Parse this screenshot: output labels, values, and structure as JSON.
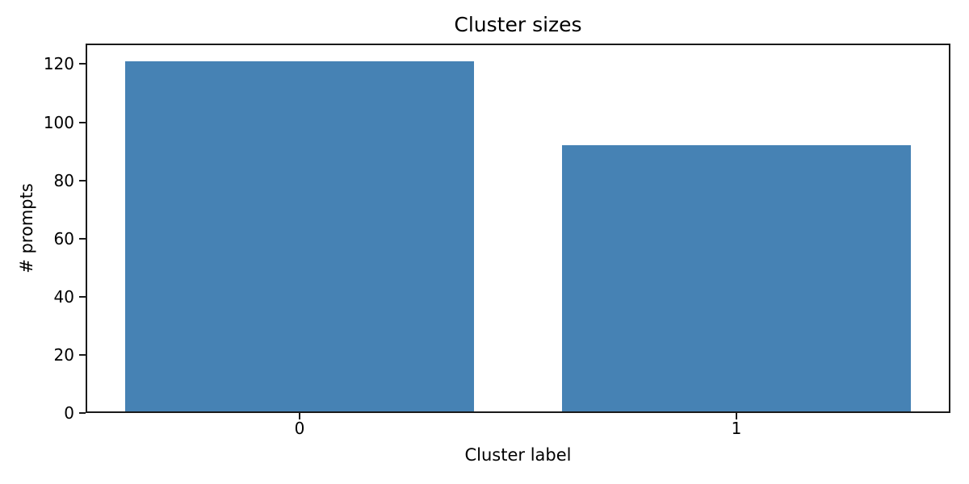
{
  "chart_data": {
    "type": "bar",
    "title": "Cluster sizes",
    "xlabel": "Cluster label",
    "ylabel": "# prompts",
    "categories": [
      "0",
      "1"
    ],
    "values": [
      121,
      92
    ],
    "yticks": [
      0,
      20,
      40,
      60,
      80,
      100,
      120
    ],
    "ylim": [
      0,
      127.05
    ],
    "xlim": [
      -0.49,
      1.49
    ],
    "bar_width_units": 0.8,
    "bar_color": "#4682b4",
    "axis_color": "#1a1a1a",
    "text_color": "#000000",
    "background_color": "#ffffff",
    "grid": false,
    "legend": false
  }
}
